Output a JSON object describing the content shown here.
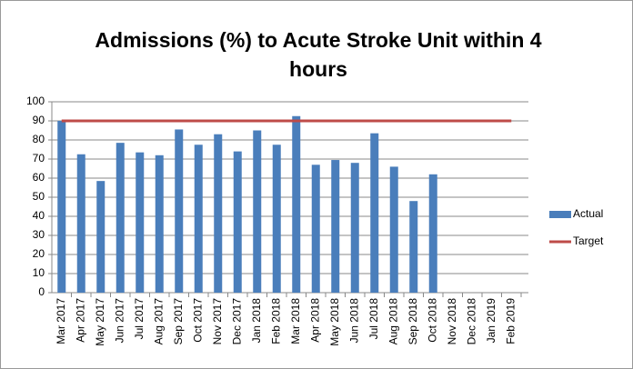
{
  "chart_data": {
    "type": "bar",
    "title": "Admissions (%) to Acute Stroke Unit within 4 hours",
    "categories": [
      "Mar 2017",
      "Apr 2017",
      "May 2017",
      "Jun 2017",
      "Jul 2017",
      "Aug 2017",
      "Sep 2017",
      "Oct 2017",
      "Nov 2017",
      "Dec 2017",
      "Jan 2018",
      "Feb 2018",
      "Mar 2018",
      "Apr 2018",
      "May 2018",
      "Jun 2018",
      "Jul 2018",
      "Aug 2018",
      "Sep 2018",
      "Oct 2018",
      "Nov 2018",
      "Dec 2018",
      "Jan 2019",
      "Feb 2019"
    ],
    "series": [
      {
        "name": "Actual",
        "type": "bar",
        "color": "#4a7ebb",
        "values": [
          90,
          72.5,
          58.5,
          78.5,
          73.5,
          72,
          85.5,
          77.5,
          83,
          74,
          85,
          77.5,
          92.5,
          67,
          69.5,
          68,
          83.5,
          66,
          48,
          62,
          null,
          null,
          null,
          null
        ]
      },
      {
        "name": "Target",
        "type": "line",
        "color": "#be4b48",
        "values": [
          90,
          90,
          90,
          90,
          90,
          90,
          90,
          90,
          90,
          90,
          90,
          90,
          90,
          90,
          90,
          90,
          90,
          90,
          90,
          90,
          90,
          90,
          90,
          90
        ]
      }
    ],
    "ylim": [
      0,
      100
    ],
    "yticks": [
      0,
      10,
      20,
      30,
      40,
      50,
      60,
      70,
      80,
      90,
      100
    ],
    "grid": true,
    "legend": "right"
  }
}
